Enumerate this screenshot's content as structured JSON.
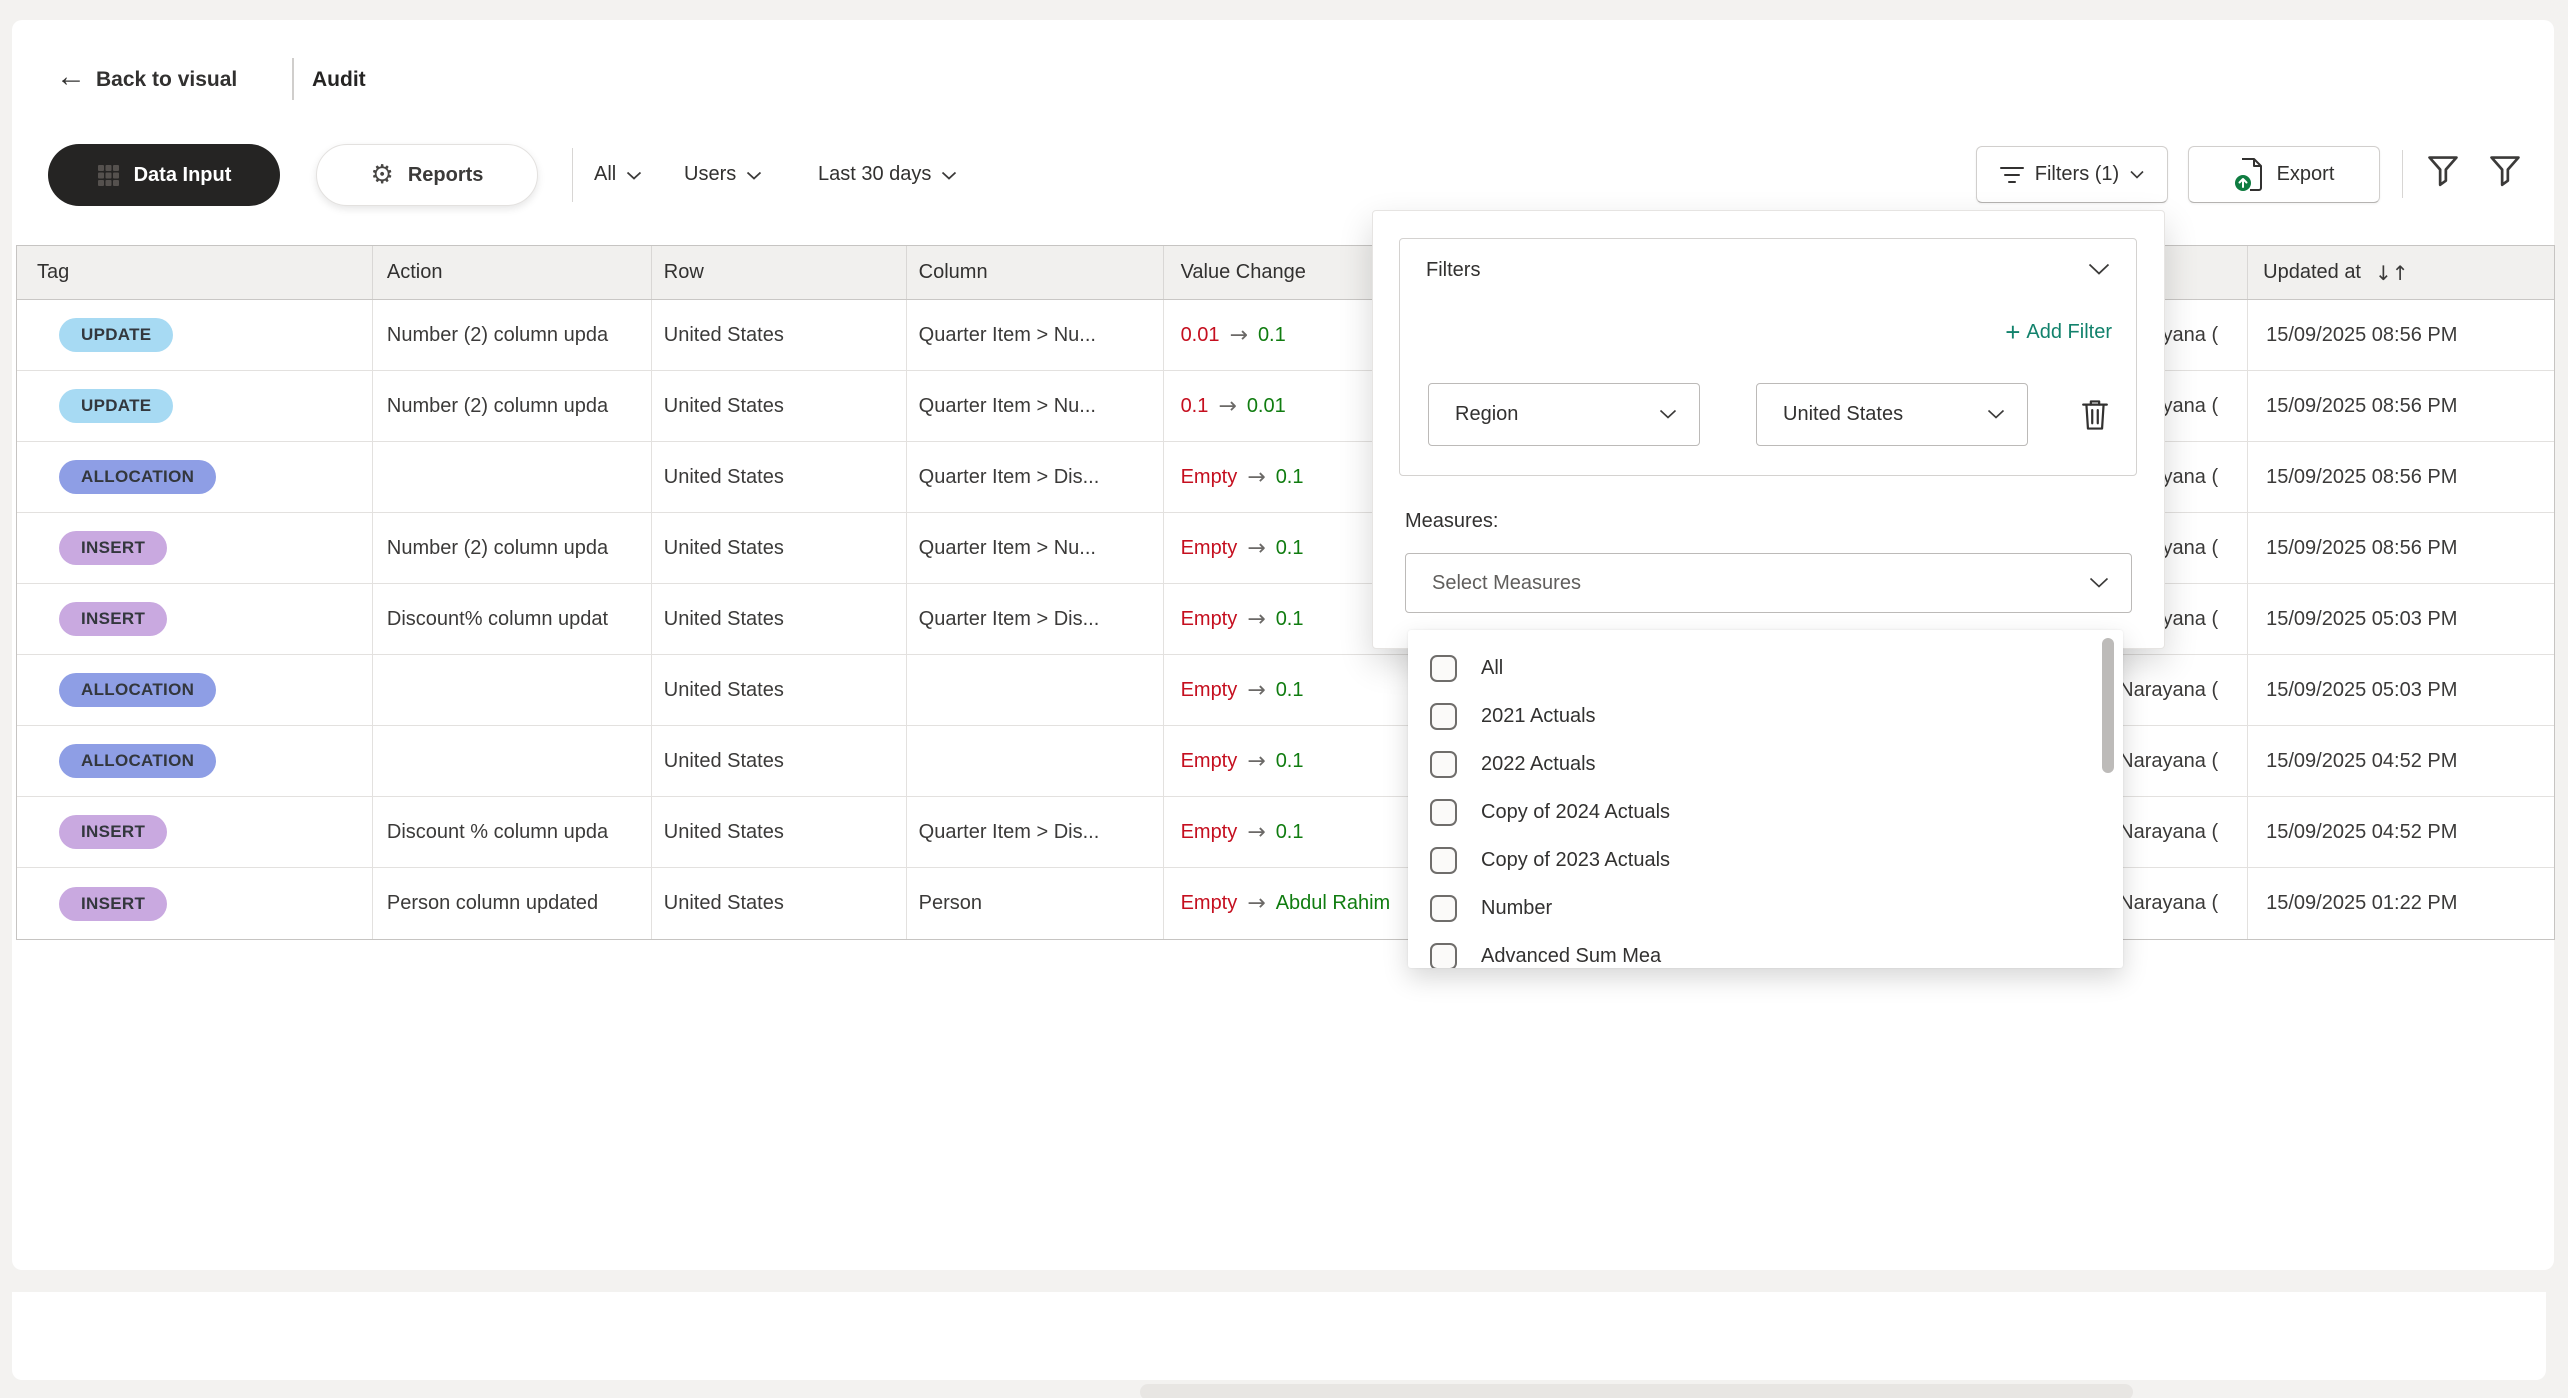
{
  "header": {
    "back": "Back to visual",
    "title": "Audit"
  },
  "toolbar": {
    "data_input": "Data Input",
    "reports": "Reports",
    "scope_dropdown": "All",
    "users_dropdown": "Users",
    "range_dropdown": "Last 30 days",
    "filters_button": "Filters (1)",
    "export_button": "Export"
  },
  "table": {
    "columns": [
      {
        "label": "Tag"
      },
      {
        "label": "Action"
      },
      {
        "label": "Row"
      },
      {
        "label": "Column"
      },
      {
        "label": "Value Change"
      },
      {
        "label": ""
      },
      {
        "label": ""
      },
      {
        "label": "Updated at",
        "sortable": true
      }
    ],
    "sort_glyph": "↓↑",
    "rows": [
      {
        "tag": "UPDATE",
        "action": "Number (2) column upda",
        "row": "United States",
        "column": "Quarter Item > Nu...",
        "change_from": "0.01",
        "change_to": "0.1",
        "updated_by": "Narayana (",
        "updated_at": "15/09/2025 08:56 PM"
      },
      {
        "tag": "UPDATE",
        "action": "Number (2) column upda",
        "row": "United States",
        "column": "Quarter Item > Nu...",
        "change_from": "0.1",
        "change_to": "0.01",
        "updated_by": "Narayana (",
        "updated_at": "15/09/2025 08:56 PM"
      },
      {
        "tag": "ALLOCATION",
        "action": "",
        "row": "United States",
        "column": "Quarter Item > Dis...",
        "change_from": "Empty",
        "change_to": "0.1",
        "updated_by": "Narayana (",
        "updated_at": "15/09/2025 08:56 PM"
      },
      {
        "tag": "INSERT",
        "action": "Number (2) column upda",
        "row": "United States",
        "column": "Quarter Item > Nu...",
        "change_from": "Empty",
        "change_to": "0.1",
        "updated_by": "Narayana (",
        "updated_at": "15/09/2025 08:56 PM"
      },
      {
        "tag": "INSERT",
        "action": "Discount% column updat",
        "row": "United States",
        "column": "Quarter Item > Dis...",
        "change_from": "Empty",
        "change_to": "0.1",
        "updated_by": "Narayana (",
        "updated_at": "15/09/2025 05:03 PM"
      },
      {
        "tag": "ALLOCATION",
        "action": "",
        "row": "United States",
        "column": "",
        "change_from": "Empty",
        "change_to": "0.1",
        "updated_by": "Narayana (",
        "updated_at": "15/09/2025 05:03 PM"
      },
      {
        "tag": "ALLOCATION",
        "action": "",
        "row": "United States",
        "column": "",
        "change_from": "Empty",
        "change_to": "0.1",
        "updated_by": "Narayana (",
        "updated_at": "15/09/2025 04:52 PM"
      },
      {
        "tag": "INSERT",
        "action": "Discount % column upda",
        "row": "United States",
        "column": "Quarter Item > Dis...",
        "change_from": "Empty",
        "change_to": "0.1",
        "updated_by": "Narayana (",
        "updated_at": "15/09/2025 04:52 PM"
      },
      {
        "tag": "INSERT",
        "action": "Person column updated",
        "row": "United States",
        "column": "Person",
        "change_from": "Empty",
        "change_to": "Abdul Rahim",
        "updated_by": "Narayana (",
        "updated_at": "15/09/2025 01:22 PM"
      }
    ]
  },
  "tag_colors": {
    "UPDATE": "#A7DAF3",
    "ALLOCATION": "#8E9EE5",
    "INSERT": "#C9A9E0"
  },
  "filter_popup": {
    "title": "Filters",
    "add_filter": "Add Filter",
    "filter_field": "Region",
    "filter_value": "United States",
    "measures_label": "Measures:",
    "measures_placeholder": "Select Measures",
    "measure_options": [
      "All",
      "2021 Actuals",
      "2022 Actuals",
      "Copy of 2024 Actuals",
      "Copy of 2023 Actuals",
      "Number",
      "Advanced Sum Mea"
    ]
  },
  "colors": {
    "accent_teal": "#12826C",
    "change_from_red": "#C50F1F",
    "change_to_green": "#107C10",
    "export_green": "#0F7C41"
  }
}
